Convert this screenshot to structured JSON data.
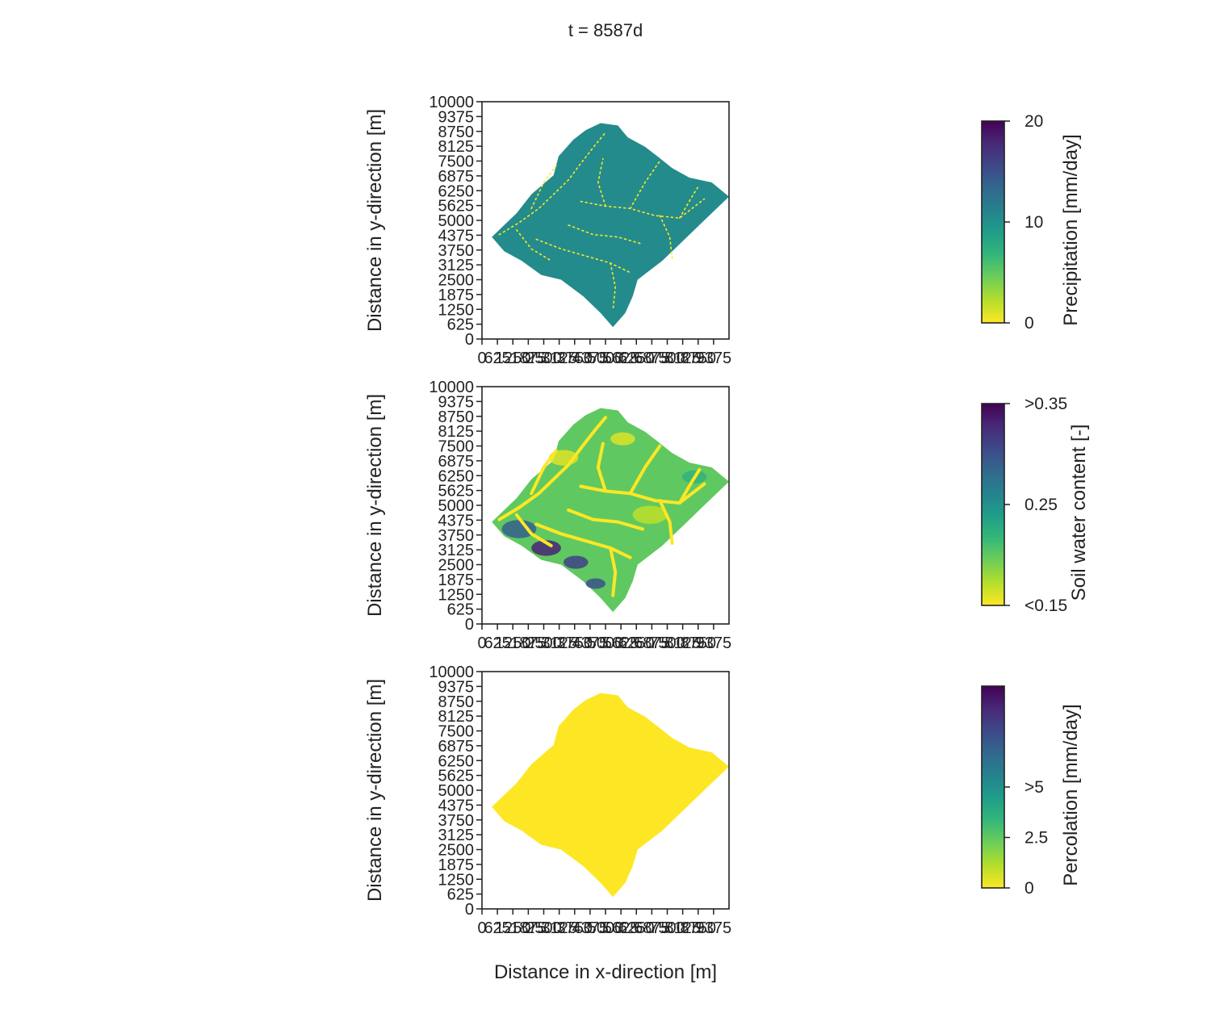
{
  "figure": {
    "suptitle": "t = 8587d",
    "x_axis_label": "Distance in x-direction [m]"
  },
  "colormap": {
    "name": "viridis_r",
    "stops": [
      "#fde725",
      "#b5de2b",
      "#6ece58",
      "#35b779",
      "#1f9e89",
      "#26828e",
      "#31688e",
      "#3e4989",
      "#482878",
      "#440154"
    ],
    "frame_color": "#222222",
    "background": "#ffffff"
  },
  "chart_data": [
    {
      "type": "heatmap",
      "variable": "precipitation",
      "ylabel": "Distance in y-direction [m]",
      "yticks": [
        "0",
        "625",
        "1250",
        "1875",
        "2500",
        "3125",
        "3750",
        "4375",
        "5000",
        "5625",
        "6250",
        "6875",
        "7500",
        "8125",
        "8750",
        "9375",
        "10000"
      ],
      "xticks": [
        "0",
        "625",
        "1250",
        "1875",
        "2500",
        "3125",
        "3750",
        "4375",
        "5000",
        "5625",
        "6250",
        "6875",
        "7500",
        "8125",
        "8750",
        "9375"
      ],
      "xlim": [
        0,
        10000
      ],
      "ylim": [
        0,
        10000
      ],
      "colorbar": {
        "label": "Precipitation [mm/day]",
        "ticks": [
          {
            "label": "0",
            "frac": 0
          },
          {
            "label": "10",
            "frac": 0.5
          },
          {
            "label": "20",
            "frac": 1
          }
        ],
        "range": [
          0,
          20
        ]
      },
      "typical_value_frac": 0.52,
      "channel_color": "#fde725"
    },
    {
      "type": "heatmap",
      "variable": "soil_water_content",
      "ylabel": "Distance in y-direction [m]",
      "yticks": [
        "0",
        "625",
        "1250",
        "1875",
        "2500",
        "3125",
        "3750",
        "4375",
        "5000",
        "5625",
        "6250",
        "6875",
        "7500",
        "8125",
        "8750",
        "9375",
        "10000"
      ],
      "xticks": [
        "0",
        "625",
        "1250",
        "1875",
        "2500",
        "3125",
        "3750",
        "4375",
        "5000",
        "5625",
        "6250",
        "6875",
        "7500",
        "8125",
        "8750",
        "9375"
      ],
      "xlim": [
        0,
        10000
      ],
      "ylim": [
        0,
        10000
      ],
      "colorbar": {
        "label": "Soil water content [-]",
        "ticks": [
          {
            "label": "<0.15",
            "frac": 0
          },
          {
            "label": "0.25",
            "frac": 0.5
          },
          {
            "label": ">0.35",
            "frac": 1
          }
        ],
        "range": [
          0.15,
          0.35
        ]
      },
      "typical_value_frac": 0.25,
      "channel_color": "#fde725"
    },
    {
      "type": "heatmap",
      "variable": "percolation",
      "ylabel": "Distance in y-direction [m]",
      "yticks": [
        "0",
        "625",
        "1250",
        "1875",
        "2500",
        "3125",
        "3750",
        "4375",
        "5000",
        "5625",
        "6250",
        "6875",
        "7500",
        "8125",
        "8750",
        "9375",
        "10000"
      ],
      "xticks": [
        "0",
        "625",
        "1250",
        "1875",
        "2500",
        "3125",
        "3750",
        "4375",
        "5000",
        "5625",
        "6250",
        "6875",
        "7500",
        "8125",
        "8750",
        "9375"
      ],
      "xlim": [
        0,
        10000
      ],
      "ylim": [
        0,
        10000
      ],
      "colorbar": {
        "label": "Percolation [mm/day]",
        "ticks": [
          {
            "label": "0",
            "frac": 0
          },
          {
            "label": "2.5",
            "frac": 0.25
          },
          {
            "label": ">5",
            "frac": 0.5
          }
        ],
        "range": [
          0,
          10
        ]
      },
      "typical_value_frac": 0.0,
      "channel_color": "#fde725"
    }
  ]
}
